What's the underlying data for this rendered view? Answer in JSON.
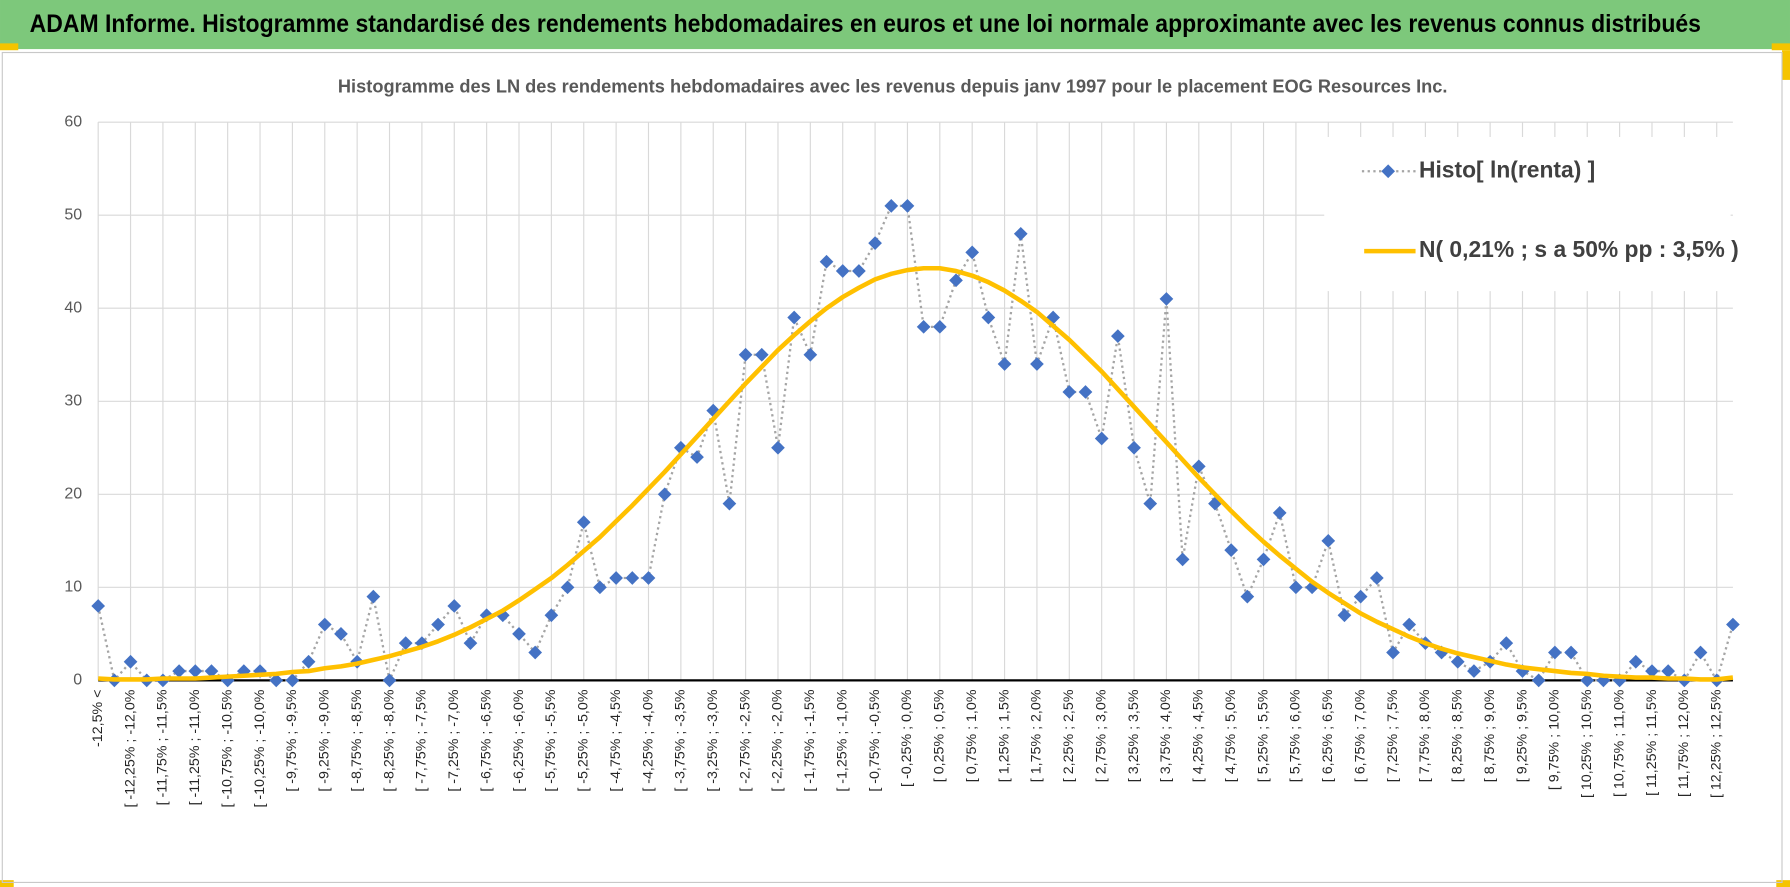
{
  "header": "ADAM Informe. Histogramme standardisé des rendements hebdomadaires en euros et une loi normale approximante avec les revenus connus distribués",
  "chart_data": {
    "type": "line",
    "title": "Histogramme des LN des rendements hebdomadaires avec les revenus depuis janv 1997 pour le placement EOG Resources Inc.",
    "categories": [
      "-12,5% <",
      null,
      "[ -12,25% ; -12,0%",
      null,
      "[ -11,75% ; -11,5%",
      null,
      "[ -11,25% ; -11,0%",
      null,
      "[ -10,75% ; -10,5%",
      null,
      "[ -10,25% ; -10,0%",
      null,
      "[ -9,75% ; -9,5%",
      null,
      "[ -9,25% ; -9,0%",
      null,
      "[ -8,75% ; -8,5%",
      null,
      "[ -8,25% ; -8,0%",
      null,
      "[ -7,75% ; -7,5%",
      null,
      "[ -7,25% ; -7,0%",
      null,
      "[ -6,75% ; -6,5%",
      null,
      "[ -6,25% ; -6,0%",
      null,
      "[ -5,75% ; -5,5%",
      null,
      "[ -5,25% ; -5,0%",
      null,
      "[ -4,75% ; -4,5%",
      null,
      "[ -4,25% ; -4,0%",
      null,
      "[ -3,75% ; -3,5%",
      null,
      "[ -3,25% ; -3,0%",
      null,
      "[ -2,75% ; -2,5%",
      null,
      "[ -2,25% ; -2,0%",
      null,
      "[ -1,75% ; -1,5%",
      null,
      "[ -1,25% ; -1,0%",
      null,
      "[ -0,75% ; -0,5%",
      null,
      "[ -0,25% ; 0,0%",
      null,
      "[ 0,25% ; 0,5%",
      null,
      "[ 0,75% ; 1,0%",
      null,
      "[ 1,25% ; 1,5%",
      null,
      "[ 1,75% ; 2,0%",
      null,
      "[ 2,25% ; 2,5%",
      null,
      "[ 2,75% ; 3,0%",
      null,
      "[ 3,25% ; 3,5%",
      null,
      "[ 3,75% ; 4,0%",
      null,
      "[ 4,25% ; 4,5%",
      null,
      "[ 4,75% ; 5,0%",
      null,
      "[ 5,25% ; 5,5%",
      null,
      "[ 5,75% ; 6,0%",
      null,
      "[ 6,25% ; 6,5%",
      null,
      "[ 6,75% ; 7,0%",
      null,
      "[ 7,25% ; 7,5%",
      null,
      "[ 7,75% ; 8,0%",
      null,
      "[ 8,25% ; 8,5%",
      null,
      "[ 8,75% ; 9,0%",
      null,
      "[ 9,25% ; 9,5%",
      null,
      "[ 9,75% ; 10,0%",
      null,
      "[ 10,25% ; 10,5%",
      null,
      "[ 10,75% ; 11,0%",
      null,
      "[ 11,25% ; 11,5%",
      null,
      "[ 11,75% ; 12,0%",
      null,
      "[ 12,25% ; 12,5%",
      null
    ],
    "series": [
      {
        "name": "Histo[ ln(renta) ]",
        "color": "#4472c4",
        "line_color": "#a5a5a5",
        "marker": "diamond",
        "values": [
          8,
          0,
          2,
          0,
          0,
          1,
          1,
          1,
          0,
          1,
          1,
          0,
          0,
          2,
          6,
          5,
          2,
          9,
          0,
          4,
          4,
          6,
          8,
          4,
          7,
          7,
          5,
          3,
          7,
          10,
          17,
          10,
          11,
          11,
          11,
          20,
          25,
          24,
          29,
          19,
          35,
          35,
          25,
          39,
          35,
          45,
          44,
          44,
          47,
          51,
          51,
          38,
          38,
          43,
          46,
          39,
          34,
          48,
          34,
          39,
          31,
          31,
          26,
          37,
          25,
          19,
          41,
          13,
          23,
          19,
          14,
          9,
          13,
          18,
          10,
          10,
          15,
          7,
          9,
          11,
          3,
          6,
          4,
          3,
          2,
          1,
          2,
          4,
          1,
          0,
          3,
          3,
          0,
          0,
          0,
          2,
          1,
          1,
          0,
          3,
          0,
          6
        ]
      },
      {
        "name": "N( 0,21% ; s a 50% pp : 3,5% )",
        "color": "#ffc000",
        "values": [
          0.2,
          0.1,
          0.1,
          0.1,
          0.2,
          0.2,
          0.2,
          0.3,
          0.4,
          0.5,
          0.6,
          0.7,
          0.9,
          1.0,
          1.3,
          1.5,
          1.8,
          2.2,
          2.6,
          3.1,
          3.6,
          4.2,
          4.9,
          5.7,
          6.6,
          7.5,
          8.6,
          9.8,
          11.0,
          12.4,
          13.9,
          15.4,
          17.1,
          18.8,
          20.6,
          22.4,
          24.3,
          26.2,
          28.1,
          30.0,
          31.9,
          33.7,
          35.5,
          37.1,
          38.6,
          40.0,
          41.2,
          42.2,
          43.1,
          43.7,
          44.1,
          44.3,
          44.3,
          44.0,
          43.5,
          42.8,
          41.9,
          40.8,
          39.6,
          38.1,
          36.6,
          34.9,
          33.2,
          31.3,
          29.4,
          27.5,
          25.6,
          23.7,
          21.8,
          20.0,
          18.2,
          16.5,
          14.9,
          13.4,
          12.0,
          10.6,
          9.4,
          8.3,
          7.2,
          6.3,
          5.5,
          4.7,
          4.0,
          3.4,
          2.9,
          2.5,
          2.1,
          1.7,
          1.4,
          1.2,
          1.0,
          0.8,
          0.7,
          0.5,
          0.4,
          0.3,
          0.3,
          0.2,
          0.2,
          0.1,
          0.1,
          0.3
        ]
      }
    ],
    "ylim": [
      0,
      60
    ],
    "yticks": [
      0,
      10,
      20,
      30,
      40,
      50,
      60
    ],
    "grid": true,
    "legend": "top-right"
  }
}
